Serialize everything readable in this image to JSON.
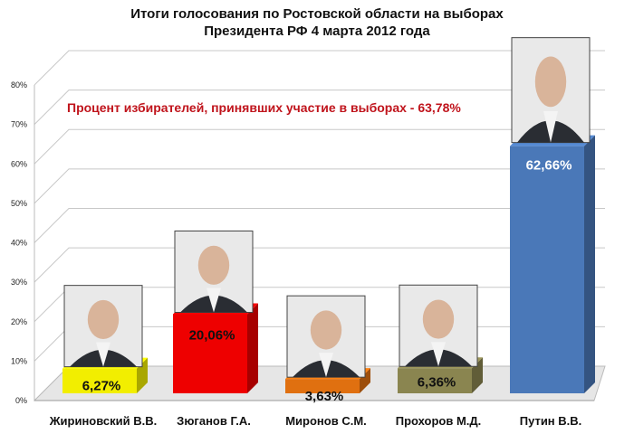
{
  "chart_data": {
    "type": "bar",
    "title": "Итоги голосования по Ростовской области на выборах",
    "subtitle": "Президента РФ  4 марта 2012 года",
    "annotation": "Процент избирателей, принявших участие в выборах - 63,78%",
    "categories": [
      "Жириновский В.В.",
      "Зюганов Г.А.",
      "Миронов С.М.",
      "Прохоров М.Д.",
      "Путин В.В."
    ],
    "values": [
      6.27,
      20.06,
      3.63,
      6.36,
      62.66
    ],
    "data_labels": [
      "6,27%",
      "20,06%",
      "3,63%",
      "6,36%",
      "62,66%"
    ],
    "colors": [
      "#f2ee00",
      "#ee0000",
      "#e07010",
      "#8a8550",
      "#4a78b8"
    ],
    "yticks": [
      "0%",
      "10%",
      "20%",
      "30%",
      "40%",
      "50%",
      "60%",
      "70%",
      "80%"
    ],
    "ylim": [
      0,
      80
    ],
    "grid": true,
    "legend": "none",
    "photos": [
      "portrait-photo",
      "portrait-photo",
      "portrait-photo",
      "portrait-photo",
      "portrait-photo"
    ]
  }
}
